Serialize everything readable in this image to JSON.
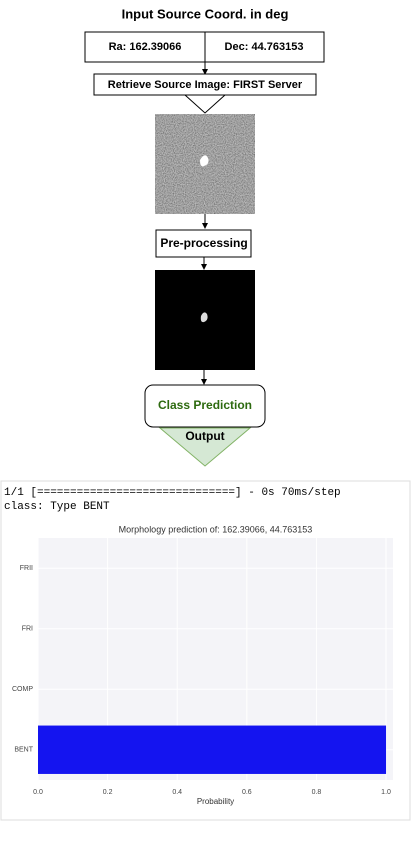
{
  "diagram": {
    "title": "Input Source Coord. in deg",
    "ra": "Ra:  162.39066",
    "dec": "Dec: 44.763153",
    "retrieve": "Retrieve Source Image: FIRST Server",
    "preprocess": "Pre-processing",
    "predict": "Class Prediction",
    "output": "Output"
  },
  "console": {
    "lines": [
      "1/1 [==============================] - 0s 70ms/step",
      "class: Type BENT"
    ]
  },
  "chart_data": {
    "type": "barh",
    "title": "Morphology prediction of: 162.39066, 44.763153",
    "categories": [
      "BENT",
      "COMP",
      "FRI",
      "FRII"
    ],
    "values": [
      1.0,
      0,
      0,
      0
    ],
    "color": "#1414f0",
    "xlabel": "Probability",
    "xlim": [
      0,
      1.02
    ],
    "xticks": [
      {
        "value": 0,
        "label": "0.0"
      },
      {
        "value": 0.2,
        "label": "0.2"
      },
      {
        "value": 0.4,
        "label": "0.4"
      },
      {
        "value": 0.6,
        "label": "0.6"
      },
      {
        "value": 0.8,
        "label": "0.8"
      },
      {
        "value": 1,
        "label": "1.0"
      }
    ],
    "grid": true
  }
}
